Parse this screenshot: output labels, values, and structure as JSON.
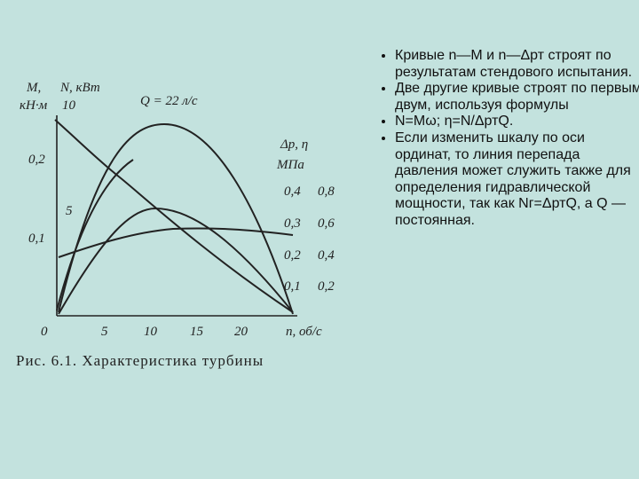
{
  "figure": {
    "axis_left_top": "M,",
    "axis_left_unit": "кН·м",
    "axis_n_label": "N, кВт",
    "left_top_tick": "10",
    "flow": "Q = 22 л/с",
    "axis_right_label": "Δp, η",
    "axis_right_unit": "МПа",
    "left_ticks": [
      "0,2",
      "5",
      "0,1"
    ],
    "right_ticks": [
      [
        "0,4",
        "0,8"
      ],
      [
        "0,3",
        "0,6"
      ],
      [
        "0,2",
        "0,4"
      ],
      [
        "0,1",
        "0,2"
      ]
    ],
    "x_ticks": [
      "0",
      "5",
      "10",
      "15",
      "20"
    ],
    "x_label": "n, об/с",
    "caption": "Рис. 6.1. Характеристика турбины"
  },
  "bullets": [
    "Кривые n—M и n—Δрт строят по результатам стендового испытания.",
    "Две другие кривые строят по первым двум, используя формулы",
    "N=Mω; η=N/ΔртQ.",
    "Если изменить шкалу по оси ординат, то линия перепада давления может служить также для определения гидравлической мощности, так как Nг=ΔртQ, а Q — постоянная."
  ]
}
